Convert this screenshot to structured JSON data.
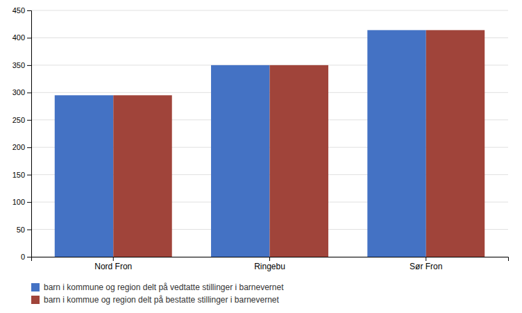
{
  "chart_data": {
    "type": "bar",
    "categories": [
      "Nord Fron",
      "Ringebu",
      "Sør Fron"
    ],
    "series": [
      {
        "name": "barn i kommune og region delt på vedtatte stillinger i barnevernet",
        "color": "#4472C4",
        "values": [
          295,
          350,
          414
        ]
      },
      {
        "name": "barn i kommue og region delt på bestatte stillinger i barnevernet",
        "color": "#A0443A",
        "values": [
          295,
          350,
          414
        ]
      }
    ],
    "ylim": [
      0,
      450
    ],
    "yticks": [
      0,
      50,
      100,
      150,
      200,
      250,
      300,
      350,
      400,
      450
    ],
    "grid": true,
    "legend": "bottom"
  }
}
